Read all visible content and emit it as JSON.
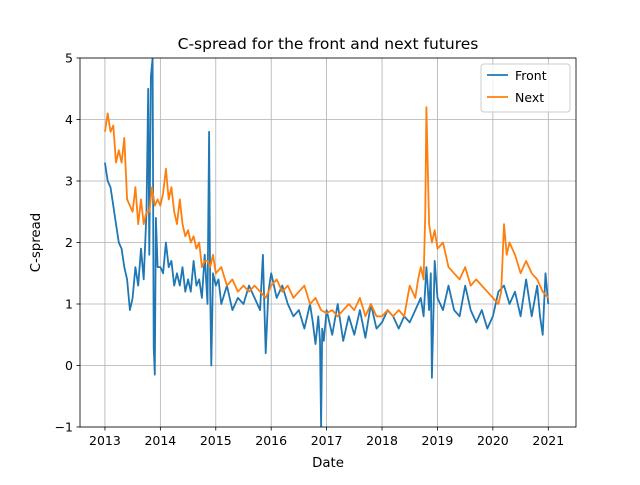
{
  "chart_data": {
    "type": "line",
    "title": "C-spread for the front and next futures",
    "xlabel": "Date",
    "ylabel": "C-spread",
    "xlim": [
      2012.55,
      2021.5
    ],
    "ylim": [
      -1,
      5
    ],
    "xticks": [
      2013,
      2014,
      2015,
      2016,
      2017,
      2018,
      2019,
      2020,
      2021
    ],
    "xtick_labels": [
      "2013",
      "2014",
      "2015",
      "2016",
      "2017",
      "2018",
      "2019",
      "2020",
      "2021"
    ],
    "yticks": [
      -1,
      0,
      1,
      2,
      3,
      4,
      5
    ],
    "ytick_labels": [
      "−1",
      "0",
      "1",
      "2",
      "3",
      "4",
      "5"
    ],
    "grid": true,
    "legend_position": "top-right",
    "series": [
      {
        "name": "Front",
        "color": "#1f77b4",
        "x": [
          2013.0,
          2013.05,
          2013.1,
          2013.15,
          2013.2,
          2013.25,
          2013.3,
          2013.35,
          2013.4,
          2013.45,
          2013.5,
          2013.55,
          2013.6,
          2013.65,
          2013.7,
          2013.75,
          2013.78,
          2013.8,
          2013.83,
          2013.86,
          2013.88,
          2013.9,
          2013.92,
          2013.95,
          2014.0,
          2014.05,
          2014.1,
          2014.15,
          2014.2,
          2014.25,
          2014.3,
          2014.35,
          2014.4,
          2014.45,
          2014.5,
          2014.55,
          2014.6,
          2014.65,
          2014.7,
          2014.75,
          2014.8,
          2014.85,
          2014.88,
          2014.9,
          2014.92,
          2014.95,
          2015.0,
          2015.05,
          2015.1,
          2015.2,
          2015.3,
          2015.4,
          2015.5,
          2015.6,
          2015.7,
          2015.8,
          2015.85,
          2015.9,
          2015.95,
          2016.0,
          2016.1,
          2016.2,
          2016.3,
          2016.4,
          2016.5,
          2016.6,
          2016.7,
          2016.75,
          2016.8,
          2016.85,
          2016.88,
          2016.9,
          2016.92,
          2016.95,
          2017.0,
          2017.1,
          2017.2,
          2017.3,
          2017.4,
          2017.5,
          2017.6,
          2017.7,
          2017.8,
          2017.9,
          2018.0,
          2018.1,
          2018.2,
          2018.3,
          2018.4,
          2018.5,
          2018.6,
          2018.7,
          2018.75,
          2018.8,
          2018.83,
          2018.85,
          2018.88,
          2018.9,
          2018.95,
          2019.0,
          2019.1,
          2019.2,
          2019.3,
          2019.4,
          2019.5,
          2019.6,
          2019.7,
          2019.8,
          2019.9,
          2020.0,
          2020.1,
          2020.2,
          2020.3,
          2020.4,
          2020.5,
          2020.6,
          2020.7,
          2020.8,
          2020.85,
          2020.9,
          2020.95,
          2021.0
        ],
        "y": [
          3.3,
          3.0,
          2.9,
          2.6,
          2.3,
          2.0,
          1.9,
          1.6,
          1.4,
          0.9,
          1.1,
          1.6,
          1.3,
          1.9,
          1.4,
          2.5,
          4.5,
          1.8,
          4.7,
          5.0,
          0.3,
          -0.15,
          2.4,
          1.6,
          1.6,
          1.5,
          2.0,
          1.6,
          1.7,
          1.3,
          1.5,
          1.3,
          1.6,
          1.2,
          1.4,
          1.2,
          1.7,
          1.3,
          1.4,
          1.1,
          1.8,
          1.0,
          3.8,
          1.2,
          0.0,
          1.5,
          1.3,
          1.4,
          1.0,
          1.3,
          0.9,
          1.1,
          1.0,
          1.3,
          1.1,
          0.9,
          1.8,
          0.2,
          1.2,
          1.5,
          1.1,
          1.3,
          1.0,
          0.8,
          0.9,
          0.6,
          1.0,
          0.7,
          0.35,
          0.8,
          0.4,
          -1.0,
          0.6,
          0.4,
          0.9,
          0.5,
          1.0,
          0.4,
          0.8,
          0.5,
          0.9,
          0.45,
          1.0,
          0.6,
          0.7,
          0.9,
          0.8,
          0.6,
          0.8,
          0.7,
          0.9,
          1.1,
          0.8,
          1.6,
          1.2,
          0.9,
          1.5,
          -0.2,
          1.7,
          1.1,
          0.9,
          1.3,
          0.9,
          0.8,
          1.3,
          0.9,
          0.7,
          0.9,
          0.6,
          0.8,
          1.2,
          1.3,
          1.0,
          1.2,
          0.8,
          1.4,
          0.8,
          1.3,
          0.8,
          0.5,
          1.5,
          1.0
        ],
        "y_detail": "noisy daily series; large spikes near late 2013 (~5.0) and late 2014 (~3.8); dips to about -1 at early 2017 and about -0.2 at late 2018"
      },
      {
        "name": "Next",
        "color": "#ff7f0e",
        "x": [
          2013.0,
          2013.05,
          2013.1,
          2013.15,
          2013.2,
          2013.25,
          2013.3,
          2013.35,
          2013.4,
          2013.45,
          2013.5,
          2013.55,
          2013.6,
          2013.65,
          2013.7,
          2013.75,
          2013.8,
          2013.85,
          2013.9,
          2013.95,
          2014.0,
          2014.05,
          2014.1,
          2014.15,
          2014.2,
          2014.25,
          2014.3,
          2014.35,
          2014.4,
          2014.45,
          2014.5,
          2014.55,
          2014.6,
          2014.65,
          2014.7,
          2014.75,
          2014.8,
          2014.85,
          2014.9,
          2014.95,
          2015.0,
          2015.1,
          2015.2,
          2015.3,
          2015.4,
          2015.5,
          2015.6,
          2015.7,
          2015.8,
          2015.9,
          2016.0,
          2016.1,
          2016.2,
          2016.3,
          2016.4,
          2016.5,
          2016.6,
          2016.7,
          2016.8,
          2016.9,
          2017.0,
          2017.1,
          2017.2,
          2017.3,
          2017.4,
          2017.5,
          2017.6,
          2017.7,
          2017.8,
          2017.9,
          2018.0,
          2018.1,
          2018.2,
          2018.3,
          2018.4,
          2018.5,
          2018.6,
          2018.65,
          2018.7,
          2018.75,
          2018.78,
          2018.8,
          2018.85,
          2018.9,
          2018.95,
          2019.0,
          2019.1,
          2019.2,
          2019.3,
          2019.4,
          2019.5,
          2019.6,
          2019.7,
          2019.8,
          2019.9,
          2020.0,
          2020.1,
          2020.15,
          2020.2,
          2020.25,
          2020.3,
          2020.4,
          2020.5,
          2020.6,
          2020.7,
          2020.8,
          2020.9,
          2021.0
        ],
        "y": [
          3.8,
          4.1,
          3.8,
          3.9,
          3.3,
          3.5,
          3.3,
          3.7,
          2.7,
          2.6,
          2.5,
          2.9,
          2.3,
          2.7,
          2.3,
          2.5,
          2.5,
          2.9,
          2.6,
          2.7,
          2.6,
          2.8,
          3.2,
          2.7,
          2.9,
          2.5,
          2.3,
          2.7,
          2.3,
          2.1,
          2.2,
          2.0,
          2.1,
          1.9,
          2.0,
          1.6,
          1.7,
          1.7,
          1.6,
          1.8,
          1.5,
          1.6,
          1.3,
          1.4,
          1.2,
          1.3,
          1.2,
          1.3,
          1.2,
          1.1,
          1.3,
          1.4,
          1.2,
          1.3,
          1.1,
          1.2,
          1.3,
          1.0,
          1.1,
          0.9,
          0.85,
          0.9,
          0.8,
          0.9,
          1.0,
          0.9,
          1.1,
          0.8,
          1.0,
          0.8,
          0.8,
          0.9,
          0.8,
          0.9,
          0.8,
          1.3,
          1.1,
          1.4,
          1.6,
          1.4,
          2.5,
          4.2,
          2.3,
          2.0,
          2.2,
          1.9,
          2.0,
          1.6,
          1.5,
          1.4,
          1.6,
          1.3,
          1.4,
          1.3,
          1.2,
          1.1,
          1.0,
          1.2,
          2.3,
          1.8,
          2.0,
          1.8,
          1.5,
          1.7,
          1.5,
          1.4,
          1.2,
          1.1
        ],
        "y_detail": "noisy daily series; starts near 3.8-4.1 in 2013, declines to about 0.8 by 2017-2018, sharp spike to about 4.2 in late 2018, jump to about 2.3 in early 2020"
      }
    ]
  }
}
